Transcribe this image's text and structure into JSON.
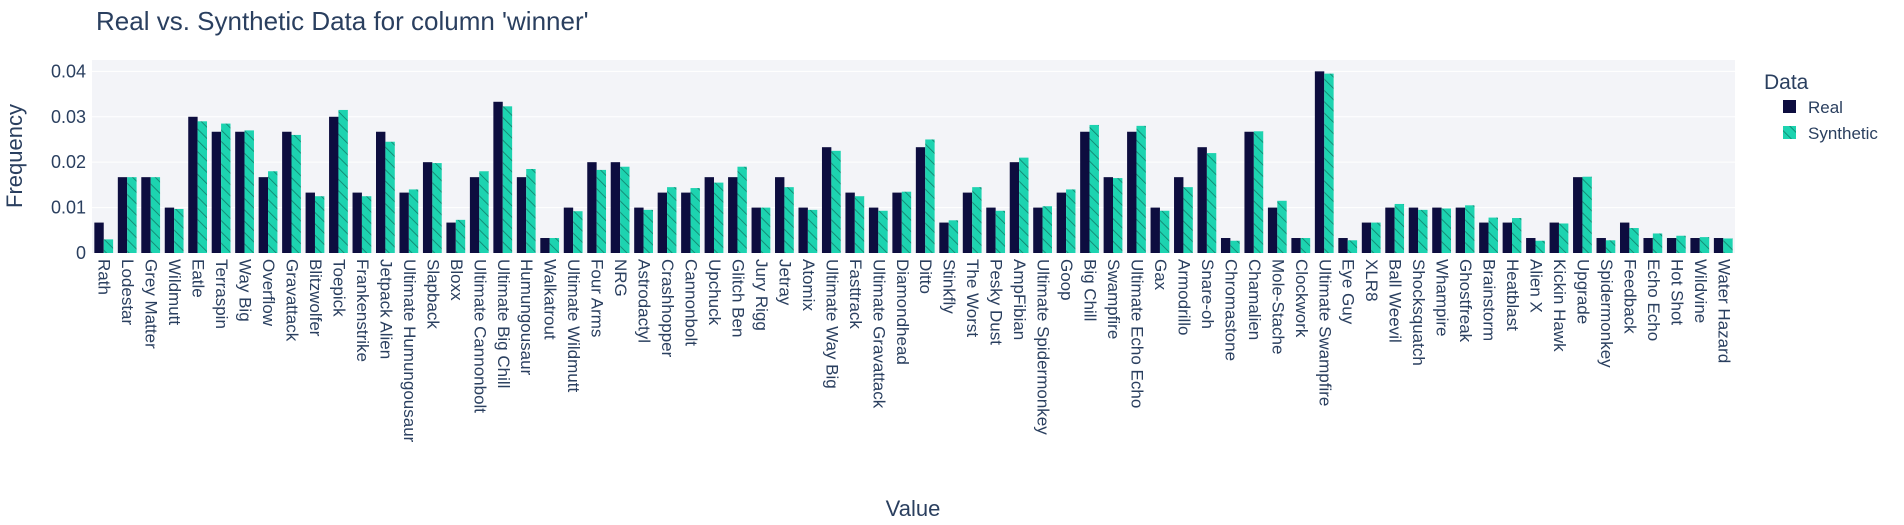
{
  "chart_data": {
    "type": "bar",
    "title": "Real vs. Synthetic Data for column 'winner'",
    "xlabel": "Value",
    "ylabel": "Frequency",
    "ylim": [
      0,
      0.0425
    ],
    "yticks": [
      0,
      0.01,
      0.02,
      0.03,
      0.04
    ],
    "ytick_labels": [
      "0",
      "0.01",
      "0.02",
      "0.03",
      "0.04"
    ],
    "grid": true,
    "legend": {
      "title": "Data",
      "position": "top-right"
    },
    "colors": {
      "Real": "#0d0d3f",
      "Synthetic": "#1dd3b0",
      "hatch": "#0f7e6a",
      "plot_bg": "#f3f4f8",
      "grid": "#ffffff",
      "text": "#2a3f5f"
    },
    "categories": [
      "Rath",
      "Lodestar",
      "Grey Matter",
      "Wildmutt",
      "Eatle",
      "Terraspin",
      "Way Big",
      "Overflow",
      "Gravattack",
      "Blitzwolfer",
      "Toepick",
      "Frankenstrike",
      "Jetpack Alien",
      "Ultimate Humungousaur",
      "Slapback",
      "Bloxx",
      "Ultimate Cannonbolt",
      "Ultimate Big Chill",
      "Humungousaur",
      "Walkatrout",
      "Ultimate Wildmutt",
      "Four Arms",
      "NRG",
      "Astrodactyl",
      "Crashhopper",
      "Cannonbolt",
      "Upchuck",
      "Glitch Ben",
      "Jury Rigg",
      "Jetray",
      "Atomix",
      "Ultimate Way Big",
      "Fasttrack",
      "Ultimate Gravattack",
      "Diamondhead",
      "Ditto",
      "Stinkfly",
      "The Worst",
      "Pesky Dust",
      "AmpFibian",
      "Ultimate Spidermonkey",
      "Goop",
      "Big Chill",
      "Swampfire",
      "Ultimate Echo Echo",
      "Gax",
      "Armodrillo",
      "Snare-oh",
      "Chromastone",
      "Chamalien",
      "Mole-Stache",
      "Clockwork",
      "Ultimate Swampfire",
      "Eye Guy",
      "XLR8",
      "Ball Weevil",
      "Shocksquatch",
      "Whampire",
      "Ghostfreak",
      "Brainstorm",
      "Heatblast",
      "Alien X",
      "Kickin Hawk",
      "Upgrade",
      "Spidermonkey",
      "Feedback",
      "Echo Echo",
      "Hot Shot",
      "Wildvine",
      "Water Hazard"
    ],
    "series": [
      {
        "name": "Real",
        "values": [
          0.0067,
          0.0167,
          0.0167,
          0.01,
          0.03,
          0.0267,
          0.0267,
          0.0167,
          0.0267,
          0.0133,
          0.03,
          0.0133,
          0.0267,
          0.0133,
          0.02,
          0.0067,
          0.0167,
          0.0333,
          0.0167,
          0.0033,
          0.01,
          0.02,
          0.02,
          0.01,
          0.0133,
          0.0133,
          0.0167,
          0.0167,
          0.01,
          0.0167,
          0.01,
          0.0233,
          0.0133,
          0.01,
          0.0133,
          0.0233,
          0.0067,
          0.0133,
          0.01,
          0.02,
          0.01,
          0.0133,
          0.0267,
          0.0167,
          0.0267,
          0.01,
          0.0167,
          0.0233,
          0.0033,
          0.0267,
          0.01,
          0.0033,
          0.04,
          0.0033,
          0.0067,
          0.01,
          0.01,
          0.01,
          0.01,
          0.0067,
          0.0067,
          0.0033,
          0.0067,
          0.0167,
          0.0033,
          0.0067,
          0.0033,
          0.0033,
          0.0033,
          0.0033
        ]
      },
      {
        "name": "Synthetic",
        "values": [
          0.003,
          0.0167,
          0.0167,
          0.0097,
          0.029,
          0.0285,
          0.027,
          0.018,
          0.026,
          0.0125,
          0.0315,
          0.0125,
          0.0245,
          0.014,
          0.0198,
          0.0073,
          0.018,
          0.0323,
          0.0185,
          0.0033,
          0.0092,
          0.0183,
          0.019,
          0.0095,
          0.0145,
          0.0143,
          0.0155,
          0.019,
          0.01,
          0.0145,
          0.0095,
          0.0225,
          0.0125,
          0.0093,
          0.0135,
          0.025,
          0.0072,
          0.0145,
          0.0093,
          0.021,
          0.0103,
          0.014,
          0.0282,
          0.0165,
          0.028,
          0.0093,
          0.0145,
          0.022,
          0.0027,
          0.0268,
          0.0115,
          0.0033,
          0.0395,
          0.0028,
          0.0067,
          0.0108,
          0.0095,
          0.0098,
          0.0105,
          0.0078,
          0.0077,
          0.0027,
          0.0065,
          0.0168,
          0.0028,
          0.0055,
          0.0043,
          0.0038,
          0.0035,
          0.0032
        ]
      }
    ]
  }
}
